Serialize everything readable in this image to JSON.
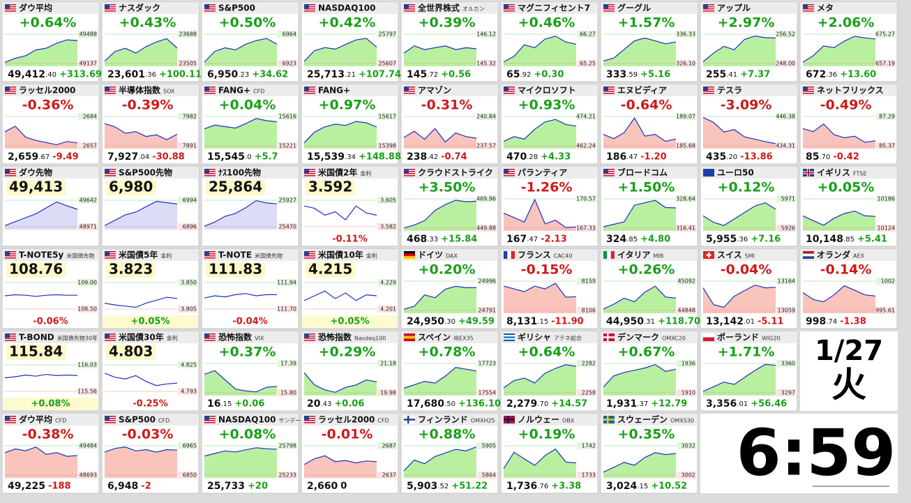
{
  "tiles": [
    {
      "flag": "us",
      "name": "ダウ平均",
      "change": "+0.64%",
      "price": "49,412.40",
      "delta": "+313.69",
      "ticks": [
        49488,
        49137
      ],
      "line": [
        49150,
        49200,
        49230,
        49300,
        49320,
        49380,
        49420,
        49412
      ]
    },
    {
      "flag": "us",
      "name": "ナスダック",
      "change": "+0.43%",
      "price": "23,601.36",
      "delta": "+100.11",
      "ticks": [
        23688,
        23505
      ],
      "line": [
        23520,
        23580,
        23600,
        23570,
        23610,
        23640,
        23660,
        23601
      ]
    },
    {
      "flag": "us",
      "name": "S&P500",
      "change": "+0.50%",
      "price": "6,950.23",
      "delta": "+34.62",
      "ticks": [
        6964,
        6923
      ],
      "line": [
        6925,
        6940,
        6945,
        6942,
        6950,
        6955,
        6958,
        6950
      ]
    },
    {
      "flag": "us",
      "name": "NASDAQ100",
      "change": "+0.42%",
      "price": "25,713.21",
      "delta": "+107.74",
      "ticks": [
        25797,
        25607
      ],
      "line": [
        25620,
        25690,
        25710,
        25700,
        25730,
        25760,
        25770,
        25713
      ]
    },
    {
      "flag": "us",
      "name": "全世界株式",
      "sub": "オルカン",
      "change": "+0.39%",
      "price": "145.72",
      "delta": "+0.56",
      "ticks": [
        146.12,
        145.32
      ],
      "line": [
        145.6,
        145.8,
        145.7,
        145.75,
        145.8,
        145.7,
        145.75,
        145.72
      ]
    },
    {
      "flag": "us",
      "name": "マグニフィセント7",
      "change": "+0.46%",
      "price": "65.92",
      "delta": "+0.30",
      "ticks": [
        66.27,
        65.25
      ],
      "line": [
        65.3,
        65.5,
        65.9,
        65.8,
        66.1,
        66.2,
        66.0,
        65.92
      ]
    },
    {
      "flag": "us",
      "name": "グーグル",
      "change": "+1.57%",
      "price": "333.59",
      "delta": "+5.16",
      "ticks": [
        336.33,
        {
          "value": 326.1,
          "label": "326.10"
        }
      ],
      "line": [
        327,
        328,
        331,
        334,
        335,
        334,
        333,
        333.59
      ]
    },
    {
      "flag": "us",
      "name": "アップル",
      "change": "+2.97%",
      "price": "255.41",
      "delta": "+7.37",
      "ticks": [
        256.52,
        {
          "value": 248,
          "label": "248.00"
        }
      ],
      "line": [
        248.5,
        251,
        253,
        252,
        255,
        256,
        255.5,
        255.41
      ]
    },
    {
      "flag": "us",
      "name": "メタ",
      "change": "+2.06%",
      "price": "672.36",
      "delta": "+13.60",
      "ticks": [
        675.27,
        657.19
      ],
      "line": [
        658,
        662,
        668,
        667,
        671,
        674,
        673,
        672.36
      ]
    },
    {
      "flag": "us",
      "name": "ラッセル2000",
      "change": "-0.36%",
      "price": "2,659.67",
      "delta": "-9.49",
      "ticks": [
        2684,
        2657
      ],
      "line": [
        2670,
        2675,
        2665,
        2662,
        2660,
        2658,
        2661,
        2659.67
      ]
    },
    {
      "flag": "us",
      "name": "半導体指数",
      "sub": "SOX",
      "change": "-0.39%",
      "price": "7,927.04",
      "delta": "-30.88",
      "ticks": [
        7982,
        7891
      ],
      "line": [
        7960,
        7950,
        7930,
        7935,
        7920,
        7925,
        7910,
        7927
      ]
    },
    {
      "flag": "us",
      "name": "FANG+",
      "sub": "CFD",
      "change": "+0.04%",
      "price": "15,545.0",
      "delta": "+5.7",
      "ticks": [
        15616,
        15221
      ],
      "line": [
        15450,
        15500,
        15480,
        15460,
        15520,
        15590,
        15560,
        15545
      ]
    },
    {
      "flag": "us",
      "name": "FANG+",
      "change": "+0.97%",
      "price": "15,539.34",
      "delta": "+148.88",
      "ticks": [
        15617,
        15398
      ],
      "line": [
        15420,
        15500,
        15540,
        15560,
        15550,
        15580,
        15570,
        15539
      ]
    },
    {
      "flag": "us",
      "name": "アマゾン",
      "change": "-0.31%",
      "price": "238.42",
      "delta": "-0.74",
      "ticks": [
        240.84,
        237.57
      ],
      "line": [
        238.5,
        239.2,
        238.3,
        239.5,
        238,
        239,
        238.6,
        238.42
      ]
    },
    {
      "flag": "us",
      "name": "マイクロソフト",
      "change": "+0.93%",
      "price": "470.28",
      "delta": "+4.33",
      "ticks": [
        474.21,
        462.24
      ],
      "line": [
        464,
        466,
        465,
        469,
        472,
        473,
        471,
        470.28
      ]
    },
    {
      "flag": "us",
      "name": "エヌビディア",
      "change": "-0.64%",
      "price": "186.47",
      "delta": "-1.20",
      "ticks": [
        189.07,
        185.68
      ],
      "line": [
        187,
        186.5,
        187.2,
        188.9,
        186.8,
        187,
        186.2,
        186.47
      ]
    },
    {
      "flag": "us",
      "name": "テスラ",
      "change": "-3.09%",
      "price": "435.20",
      "delta": "-13.86",
      "ticks": [
        446.38,
        434.31
      ],
      "line": [
        446,
        444,
        440,
        441,
        438,
        437,
        436,
        435.2
      ]
    },
    {
      "flag": "us",
      "name": "ネットフリックス",
      "change": "-0.49%",
      "price": "85.70",
      "delta": "-0.42",
      "ticks": [
        87.29,
        85.37
      ],
      "line": [
        86.5,
        86.3,
        86.8,
        86.1,
        85.9,
        86,
        85.6,
        85.7
      ]
    },
    {
      "flag": "us",
      "name": "ダウ先物",
      "style": "fut",
      "price": "49,413",
      "ticks": [
        49642,
        48971
      ],
      "line": [
        49000,
        49100,
        49200,
        49300,
        49450,
        49600,
        49500,
        49413
      ]
    },
    {
      "flag": "us",
      "name": "S&P500先物",
      "style": "fut",
      "price": "6,980",
      "ticks": [
        6994,
        6896
      ],
      "line": [
        6900,
        6920,
        6940,
        6950,
        6970,
        6990,
        6985,
        6980
      ]
    },
    {
      "flag": "us",
      "name": "ﾅｽ100先物",
      "style": "fut",
      "price": "25,864",
      "ticks": [
        25927,
        25470
      ],
      "line": [
        25480,
        25550,
        25650,
        25700,
        25800,
        25920,
        25880,
        25864
      ]
    },
    {
      "flag": "us",
      "name": "米国債2年",
      "sub": "金利",
      "style": "bond",
      "price": "3.592",
      "change": "-0.11%",
      "ticks": [
        3.605,
        3.582
      ],
      "line": [
        3.6,
        3.598,
        3.592,
        3.595,
        3.588,
        3.6,
        3.594,
        3.592
      ]
    },
    {
      "flag": "us",
      "name": "クラウドストライク",
      "change": "+3.50%",
      "price": "468.33",
      "delta": "+15.84",
      "ticks": [
        469.96,
        449.88
      ],
      "line": [
        450,
        452,
        455,
        462,
        466,
        469,
        468,
        468.33
      ]
    },
    {
      "flag": "us",
      "name": "パランティア",
      "change": "-1.26%",
      "price": "167.47",
      "delta": "-2.13",
      "ticks": [
        170.57,
        167.33
      ],
      "line": [
        169,
        168.5,
        168,
        170.5,
        167.8,
        168.2,
        167.4,
        167.47
      ]
    },
    {
      "flag": "us",
      "name": "ブロードコム",
      "change": "+1.50%",
      "price": "324.85",
      "delta": "+4.80",
      "ticks": [
        328.64,
        316.41
      ],
      "line": [
        317,
        318,
        319,
        326,
        327,
        328,
        325,
        324.85
      ]
    },
    {
      "flag": "eu",
      "name": "ユーロ50",
      "change": "+0.12%",
      "price": "5,955.36",
      "delta": "+7.16",
      "ticks": [
        5971,
        5926
      ],
      "line": [
        5945,
        5935,
        5930,
        5940,
        5950,
        5960,
        5965,
        5955
      ]
    },
    {
      "flag": "gb",
      "name": "イギリス",
      "sub": "FTSE",
      "change": "+0.05%",
      "price": "10,148.85",
      "delta": "+5.41",
      "ticks": [
        10186,
        10124
      ],
      "line": [
        10150,
        10140,
        10130,
        10145,
        10155,
        10160,
        10150,
        10148.85
      ]
    },
    {
      "flag": "us",
      "name": "T-NOTE5y",
      "sub": "米国債先物",
      "style": "bond",
      "price": "108.76",
      "change": "-0.06%",
      "ticks": [
        {
          "value": 109,
          "label": "109.00"
        },
        {
          "value": 108.5,
          "label": "108.50"
        }
      ],
      "line": [
        108.75,
        108.77,
        108.76,
        108.74,
        108.76,
        108.77,
        108.76,
        108.76
      ]
    },
    {
      "flag": "us",
      "name": "米国債5年",
      "sub": "金利",
      "style": "bond",
      "price": "3.823",
      "change": "+0.05%",
      "ticks": [
        {
          "value": 3.85,
          "label": "3.850"
        },
        3.805
      ],
      "line": [
        3.815,
        3.812,
        3.81,
        3.808,
        3.815,
        3.82,
        3.825,
        3.823
      ]
    },
    {
      "flag": "us",
      "name": "T-NOTE",
      "sub": "米国債先物",
      "style": "bond",
      "price": "111.83",
      "change": "-0.04%",
      "ticks": [
        111.94,
        {
          "value": 111.7,
          "label": "111.70"
        }
      ],
      "line": [
        111.8,
        111.82,
        111.81,
        111.83,
        111.84,
        111.82,
        111.83,
        111.83
      ]
    },
    {
      "flag": "us",
      "name": "米国債10年",
      "sub": "金利",
      "style": "bond",
      "price": "4.215",
      "change": "+0.05%",
      "ticks": [
        4.229,
        4.201
      ],
      "line": [
        4.21,
        4.215,
        4.22,
        4.212,
        4.218,
        4.21,
        4.216,
        4.215
      ]
    },
    {
      "flag": "de",
      "name": "ドイツ",
      "sub": "DAX",
      "change": "+0.20%",
      "price": "24,950.30",
      "delta": "+49.59",
      "ticks": [
        24996,
        24791
      ],
      "line": [
        24800,
        24820,
        24900,
        24880,
        24940,
        24960,
        24950,
        24950.3
      ]
    },
    {
      "flag": "fr",
      "name": "フランス",
      "sub": "CAC40",
      "change": "-0.15%",
      "price": "8,131.15",
      "delta": "-11.90",
      "ticks": [
        8159,
        8106
      ],
      "line": [
        8150,
        8145,
        8140,
        8150,
        8145,
        8155,
        8130,
        8131
      ]
    },
    {
      "flag": "it",
      "name": "イタリア",
      "sub": "MIB",
      "change": "+0.26%",
      "price": "44,950.31",
      "delta": "+118.70",
      "ticks": [
        45092,
        44848
      ],
      "line": [
        44860,
        44900,
        44950,
        44920,
        45000,
        45050,
        44960,
        44950
      ]
    },
    {
      "flag": "ch",
      "name": "スイス",
      "sub": "SMI",
      "change": "-0.04%",
      "price": "13,142.01",
      "delta": "-5.11",
      "ticks": [
        13164,
        13059
      ],
      "line": [
        13140,
        13080,
        13070,
        13110,
        13130,
        13150,
        13140,
        13142
      ]
    },
    {
      "flag": "nl",
      "name": "オランダ",
      "sub": "AEX",
      "change": "-0.14%",
      "price": "998.74",
      "delta": "-1.38",
      "ticks": [
        1002,
        995.61
      ],
      "line": [
        999.5,
        998,
        997.5,
        999,
        1001,
        1000,
        999,
        998.74
      ]
    },
    {
      "flag": "us",
      "name": "T-BOND",
      "sub": "米国債先物30年",
      "style": "bond",
      "price": "115.84",
      "change": "+0.08%",
      "ticks": [
        116.03,
        115.56
      ],
      "line": [
        115.8,
        115.82,
        115.85,
        115.83,
        115.86,
        115.84,
        115.85,
        115.84
      ]
    },
    {
      "flag": "us",
      "name": "米国債30年",
      "sub": "金利",
      "style": "bond",
      "price": "4.803",
      "change": "-0.25%",
      "ticks": [
        4.825,
        4.793
      ],
      "line": [
        4.815,
        4.81,
        4.808,
        4.812,
        4.805,
        4.8,
        4.802,
        4.803
      ]
    },
    {
      "flag": "us",
      "name": "恐怖指数",
      "sub": "VIX",
      "change": "+0.37%",
      "price": "16.15",
      "delta": "+0.06",
      "ticks": [
        17.39,
        {
          "value": 15.8,
          "label": "15.80"
        }
      ],
      "line": [
        16.8,
        17,
        16.5,
        16,
        15.9,
        15.85,
        16.1,
        16.15
      ]
    },
    {
      "flag": "us",
      "name": "恐怖指数",
      "sub": "Nasdaq100",
      "change": "+0.29%",
      "price": "20.43",
      "delta": "+0.06",
      "ticks": [
        21.18,
        19.98
      ],
      "line": [
        20.8,
        20.3,
        20.1,
        20,
        20.2,
        20.3,
        20.5,
        20.43
      ]
    },
    {
      "flag": "es",
      "name": "スペイン",
      "sub": "IBEX35",
      "change": "+0.78%",
      "price": "17,680.50",
      "delta": "+136.10",
      "ticks": [
        17723,
        17554
      ],
      "line": [
        17580,
        17600,
        17620,
        17610,
        17650,
        17700,
        17690,
        17680
      ]
    },
    {
      "flag": "gr",
      "name": "ギリシャ",
      "sub": "アテネ総合",
      "change": "+0.64%",
      "price": "2,279.70",
      "delta": "+14.57",
      "ticks": [
        2282,
        2258
      ],
      "line": [
        2262,
        2268,
        2270,
        2266,
        2274,
        2278,
        2281,
        2279.7
      ]
    },
    {
      "flag": "dk",
      "name": "デンマーク",
      "sub": "OMXC20",
      "change": "+0.67%",
      "price": "1,931.37",
      "delta": "+12.79",
      "ticks": [
        1936,
        1910
      ],
      "line": [
        1915,
        1925,
        1928,
        1930,
        1932,
        1935,
        1929,
        1931
      ]
    },
    {
      "flag": "pl",
      "name": "ポーランド",
      "sub": "WIG20",
      "change": "+1.71%",
      "price": "3,356.01",
      "delta": "+56.46",
      "ticks": [
        3360,
        3297
      ],
      "line": [
        3300,
        3310,
        3320,
        3315,
        3330,
        3345,
        3358,
        3356
      ]
    },
    {
      "flag": "us",
      "name": "ダウ平均",
      "sub": "CFD",
      "change": "-0.38%",
      "price": "49,225",
      "delta": "-188",
      "ticks": [
        49484,
        48693
      ],
      "line": [
        49300,
        49400,
        49350,
        49450,
        49250,
        49300,
        49200,
        49225
      ]
    },
    {
      "flag": "us",
      "name": "S&P500",
      "sub": "CFD",
      "change": "-0.03%",
      "price": "6,948",
      "delta": "-2",
      "ticks": [
        6965,
        6850
      ],
      "line": [
        6940,
        6955,
        6960,
        6945,
        6950,
        6940,
        6950,
        6948
      ]
    },
    {
      "flag": "us",
      "name": "NASDAQ100",
      "sub": "サンデー",
      "change": "+0.08%",
      "price": "25,733",
      "delta": "+20",
      "ticks": [
        25798,
        25233
      ],
      "line": [
        25600,
        25650,
        25700,
        25680,
        25720,
        25760,
        25740,
        25733
      ]
    },
    {
      "flag": "us",
      "name": "ラッセル2000",
      "sub": "CFD",
      "change": "-0.01%",
      "price": "2,660",
      "delta": "0",
      "ticks": [
        2687,
        2637
      ],
      "line": [
        2655,
        2665,
        2670,
        2660,
        2662,
        2658,
        2661,
        2660
      ]
    },
    {
      "flag": "fi",
      "name": "フィンランド",
      "sub": "OMXH25",
      "change": "+0.88%",
      "price": "5,903.52",
      "delta": "+51.22",
      "ticks": [
        5905,
        5864
      ],
      "line": [
        5870,
        5885,
        5880,
        5890,
        5895,
        5900,
        5898,
        5903.52
      ]
    },
    {
      "flag": "no",
      "name": "ノルウェー",
      "sub": "OBX",
      "change": "+0.19%",
      "price": "1,736.76",
      "delta": "+3.38",
      "ticks": [
        1742,
        1733
      ],
      "line": [
        1735,
        1740,
        1738,
        1736,
        1739,
        1741,
        1737,
        1736.76
      ]
    },
    {
      "flag": "se",
      "name": "スウェーデン",
      "sub": "OMXS30",
      "change": "+0.35%",
      "price": "3,024.15",
      "delta": "+10.52",
      "ticks": [
        3032,
        3002
      ],
      "line": [
        3005,
        3010,
        3015,
        3012,
        3020,
        3025,
        3023,
        3024.15
      ]
    }
  ],
  "clock": {
    "date": "1/27",
    "weekday": "火",
    "time": "6:59"
  }
}
